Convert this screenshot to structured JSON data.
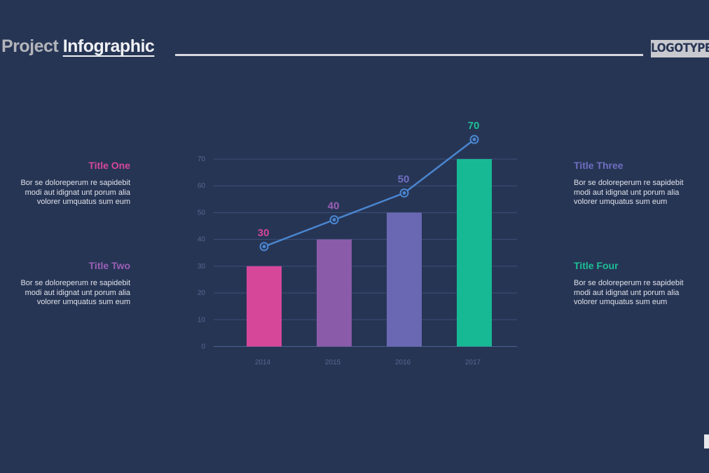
{
  "header": {
    "title_plain": "Project",
    "title_emph": "Infographic",
    "logo": "LOGOTYPE"
  },
  "blocks": [
    {
      "title": "Title One",
      "color": "#d6479a",
      "text": "Bor se doloreperum re sapidebit modi aut idignat unt porum alia volorer umquatus sum eum"
    },
    {
      "title": "Title Two",
      "color": "#9b5fb6",
      "text": "Bor se doloreperum re sapidebit modi aut idignat unt porum alia volorer umquatus sum eum"
    },
    {
      "title": "Title Three",
      "color": "#6f6fc0",
      "text": "Bor se doloreperum re sapidebit modi aut idignat unt porum alia volorer umquatus sum eum"
    },
    {
      "title": "Title Four",
      "color": "#1dbf95",
      "text": "Bor se doloreperum re sapidebit modi aut idignat unt porum alia volorer umquatus sum eum"
    }
  ],
  "chart_data": {
    "type": "bar",
    "categories": [
      "2014",
      "2015",
      "2016",
      "2017"
    ],
    "values": [
      30,
      40,
      50,
      70
    ],
    "bar_colors": [
      "#d6479a",
      "#8a5ba8",
      "#6a68b2",
      "#17b995"
    ],
    "line_overlay": {
      "values": [
        30,
        40,
        50,
        70
      ],
      "labels": [
        "30",
        "40",
        "50",
        "70"
      ],
      "label_colors": [
        "#d6479a",
        "#9b5fb6",
        "#6f6fc0",
        "#1dbf95"
      ],
      "color": "#4a86d0"
    },
    "yticks": [
      "0",
      "10",
      "20",
      "30",
      "40",
      "50",
      "60",
      "70"
    ],
    "ylim": [
      0,
      70
    ],
    "grid": true,
    "title": "",
    "xlabel": "",
    "ylabel": ""
  }
}
